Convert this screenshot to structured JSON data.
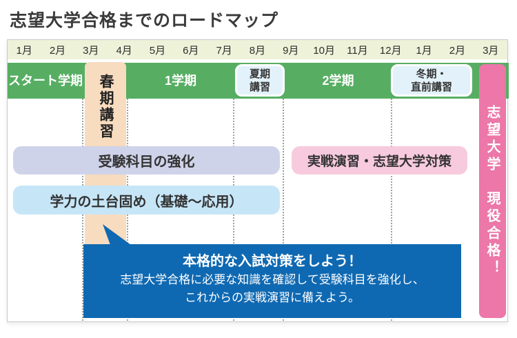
{
  "page_title": "志望大学合格までのロードマップ",
  "timeline": {
    "months": [
      "1月",
      "2月",
      "3月",
      "4月",
      "5月",
      "6月",
      "7月",
      "8月",
      "9月",
      "10月",
      "11月",
      "12月",
      "1月",
      "2月",
      "3月"
    ]
  },
  "semesters": {
    "start_term": "スタート学期",
    "term1": "1学期",
    "term2": "2学期"
  },
  "courses": {
    "spring": "春期講習",
    "summer": [
      "夏期",
      "講習"
    ],
    "winter": [
      "冬期・",
      "直前講習"
    ]
  },
  "tracks": {
    "subject_strengthening": "受験科目の強化",
    "foundation": "学力の土台固め（基礎～応用）",
    "practice": "実戦演習・志望大学対策"
  },
  "goal": "志望大学　現役合格！",
  "callout": {
    "heading": "本格的な入試対策をしよう！",
    "line1": "志望大学合格に必要な知識を確認して受験科目を強化し、",
    "line2": "これからの実戦演習に備えよう。"
  },
  "colors": {
    "green": "#57ae63",
    "month_band": "#eef2d9",
    "peach": "#f8dcbf",
    "course_box_blue": "#e3f2fa",
    "lavender": "#cfd3e9",
    "light_blue": "#c6e6f7",
    "light_pink": "#f7cadd",
    "strong_pink": "#ec77a8",
    "callout_blue": "#0f69b2"
  }
}
